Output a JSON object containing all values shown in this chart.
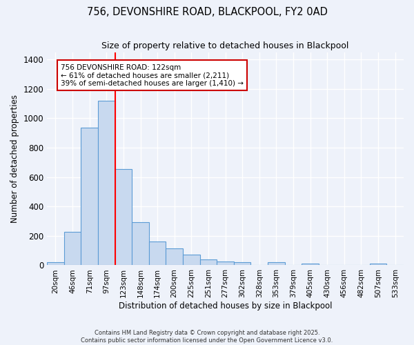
{
  "title": "756, DEVONSHIRE ROAD, BLACKPOOL, FY2 0AD",
  "subtitle": "Size of property relative to detached houses in Blackpool",
  "xlabel": "Distribution of detached houses by size in Blackpool",
  "ylabel": "Number of detached properties",
  "bar_color": "#c8d9ef",
  "bar_edge_color": "#5b9bd5",
  "background_color": "#eef2fa",
  "grid_color": "#ffffff",
  "categories": [
    "20sqm",
    "46sqm",
    "71sqm",
    "97sqm",
    "123sqm",
    "148sqm",
    "174sqm",
    "200sqm",
    "225sqm",
    "251sqm",
    "277sqm",
    "302sqm",
    "328sqm",
    "353sqm",
    "379sqm",
    "405sqm",
    "430sqm",
    "456sqm",
    "482sqm",
    "507sqm",
    "533sqm"
  ],
  "values": [
    20,
    228,
    935,
    1120,
    655,
    295,
    160,
    115,
    73,
    38,
    25,
    23,
    0,
    22,
    0,
    12,
    0,
    0,
    0,
    10,
    0
  ],
  "ylim": [
    0,
    1450
  ],
  "yticks": [
    0,
    200,
    400,
    600,
    800,
    1000,
    1200,
    1400
  ],
  "red_line_index": 3,
  "annotation_title": "756 DEVONSHIRE ROAD: 122sqm",
  "annotation_line2": "← 61% of detached houses are smaller (2,211)",
  "annotation_line3": "39% of semi-detached houses are larger (1,410) →",
  "annotation_box_color": "#ffffff",
  "annotation_box_edge": "#cc0000",
  "footer_line1": "Contains HM Land Registry data © Crown copyright and database right 2025.",
  "footer_line2": "Contains public sector information licensed under the Open Government Licence v3.0."
}
